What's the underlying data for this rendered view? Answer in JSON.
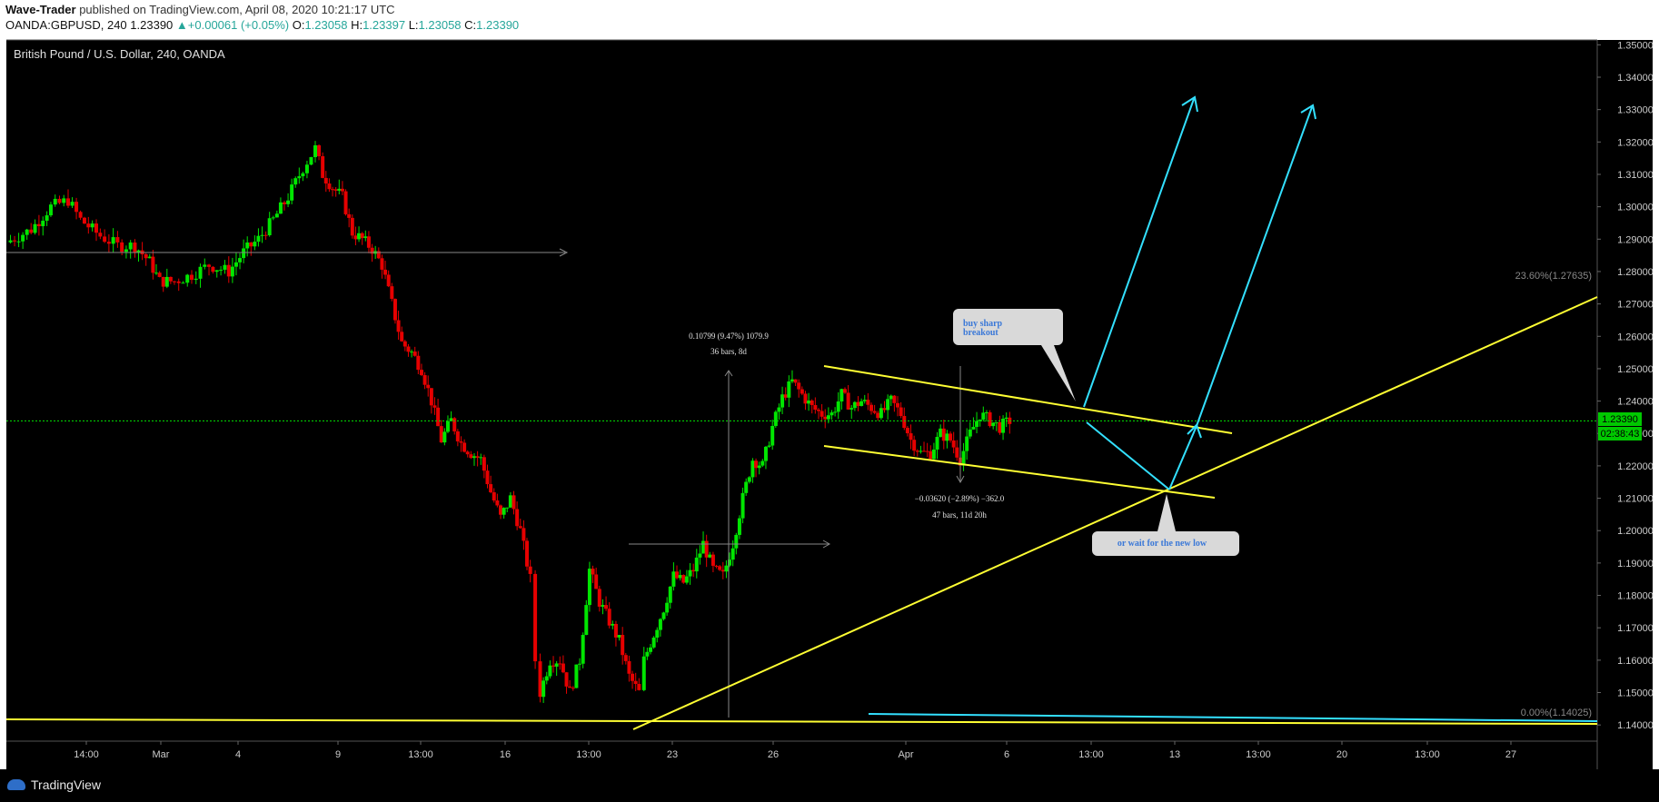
{
  "header": {
    "publisher": "Wave-Trader",
    "published_text": "published on TradingView.com, April 08, 2020 10:21:17 UTC",
    "symbol": "OANDA:GBPUSD, 240",
    "last": "1.23390",
    "change": "+0.00061 (+0.05%)",
    "o_label": "O:",
    "o_value": "1.23058",
    "h_label": "H:",
    "h_value": "1.23397",
    "l_label": "L:",
    "l_value": "1.23058",
    "c_label": "C:",
    "c_value": "1.23390"
  },
  "chart_title": "British Pound / U.S. Dollar, 240, OANDA",
  "footer": {
    "brand": "TradingView"
  },
  "colors": {
    "background": "#000000",
    "up": "#00e600",
    "down": "#e60000",
    "trendline": "#ffff33",
    "projection": "#33e0ff",
    "last_price": "#00e600",
    "axis_text": "#cccccc"
  },
  "chart_data": {
    "type": "candlestick",
    "title": "British Pound / U.S. Dollar, 240, OANDA",
    "ylim": [
      1.135,
      1.3515
    ],
    "y_ticks": [
      "1.35000",
      "1.34000",
      "1.33000",
      "1.32000",
      "1.31000",
      "1.30000",
      "1.29000",
      "1.28000",
      "1.27000",
      "1.26000",
      "1.25000",
      "1.24000",
      "1.23000",
      "1.22000",
      "1.21000",
      "1.20000",
      "1.19000",
      "1.18000",
      "1.17000",
      "1.16000",
      "1.15000",
      "1.14000"
    ],
    "x_ticks": [
      "14:00",
      "Mar",
      "4",
      "9",
      "13:00",
      "16",
      "13:00",
      "23",
      "26",
      "Apr",
      "6",
      "13:00",
      "13",
      "13:00",
      "20",
      "13:00",
      "27"
    ],
    "last_price_label": "1.23390",
    "countdown_label": "02:38:43",
    "fib_levels": [
      {
        "label": "23.60%(1.27635)",
        "value": 1.27635
      },
      {
        "label": "0.00%(1.14025)",
        "value": 1.14025
      }
    ],
    "price_path": [
      [
        0,
        1.289
      ],
      [
        10,
        1.293
      ],
      [
        18,
        1.3
      ],
      [
        25,
        1.302
      ],
      [
        30,
        1.296
      ],
      [
        38,
        1.291
      ],
      [
        45,
        1.288
      ],
      [
        52,
        1.288
      ],
      [
        58,
        1.283
      ],
      [
        62,
        1.277
      ],
      [
        68,
        1.277
      ],
      [
        75,
        1.279
      ],
      [
        82,
        1.282
      ],
      [
        90,
        1.28
      ],
      [
        96,
        1.286
      ],
      [
        102,
        1.29
      ],
      [
        108,
        1.296
      ],
      [
        114,
        1.303
      ],
      [
        120,
        1.312
      ],
      [
        125,
        1.318
      ],
      [
        128,
        1.31
      ],
      [
        132,
        1.306
      ],
      [
        136,
        1.303
      ],
      [
        140,
        1.292
      ],
      [
        144,
        1.29
      ],
      [
        148,
        1.287
      ],
      [
        152,
        1.282
      ],
      [
        156,
        1.27
      ],
      [
        160,
        1.258
      ],
      [
        164,
        1.255
      ],
      [
        168,
        1.25
      ],
      [
        172,
        1.24
      ],
      [
        176,
        1.228
      ],
      [
        180,
        1.234
      ],
      [
        184,
        1.227
      ],
      [
        188,
        1.224
      ],
      [
        192,
        1.222
      ],
      [
        196,
        1.212
      ],
      [
        200,
        1.204
      ],
      [
        204,
        1.21
      ],
      [
        208,
        1.2
      ],
      [
        212,
        1.185
      ],
      [
        214,
        1.16
      ],
      [
        216,
        1.15
      ],
      [
        220,
        1.16
      ],
      [
        224,
        1.16
      ],
      [
        228,
        1.15
      ],
      [
        232,
        1.16
      ],
      [
        236,
        1.188
      ],
      [
        240,
        1.178
      ],
      [
        244,
        1.172
      ],
      [
        248,
        1.166
      ],
      [
        252,
        1.155
      ],
      [
        256,
        1.15
      ],
      [
        258,
        1.16
      ],
      [
        262,
        1.168
      ],
      [
        266,
        1.176
      ],
      [
        270,
        1.186
      ],
      [
        274,
        1.184
      ],
      [
        278,
        1.188
      ],
      [
        282,
        1.196
      ],
      [
        286,
        1.188
      ],
      [
        290,
        1.186
      ],
      [
        294,
        1.196
      ],
      [
        298,
        1.21
      ],
      [
        302,
        1.222
      ],
      [
        306,
        1.22
      ],
      [
        310,
        1.232
      ],
      [
        314,
        1.241
      ],
      [
        318,
        1.246
      ],
      [
        322,
        1.242
      ],
      [
        326,
        1.238
      ],
      [
        330,
        1.236
      ],
      [
        334,
        1.236
      ],
      [
        338,
        1.242
      ],
      [
        342,
        1.238
      ],
      [
        346,
        1.24
      ],
      [
        350,
        1.238
      ],
      [
        354,
        1.236
      ],
      [
        358,
        1.24
      ],
      [
        362,
        1.236
      ],
      [
        366,
        1.228
      ],
      [
        370,
        1.224
      ],
      [
        374,
        1.224
      ],
      [
        378,
        1.23
      ],
      [
        382,
        1.228
      ],
      [
        386,
        1.222
      ],
      [
        390,
        1.23
      ],
      [
        394,
        1.236
      ],
      [
        398,
        1.234
      ],
      [
        402,
        1.232
      ],
      [
        406,
        1.2339
      ]
    ],
    "annotations": [
      {
        "line1": "0.10799 (9.47%) 1079.9",
        "line2": "36 bars, 8d"
      },
      {
        "line1": "−0.03620 (−2.89%) −362.0",
        "line2": "47 bars, 11d 20h"
      },
      {
        "callout": "buy sharp\nbreakout"
      },
      {
        "callout": "or wait for the new low"
      }
    ]
  }
}
